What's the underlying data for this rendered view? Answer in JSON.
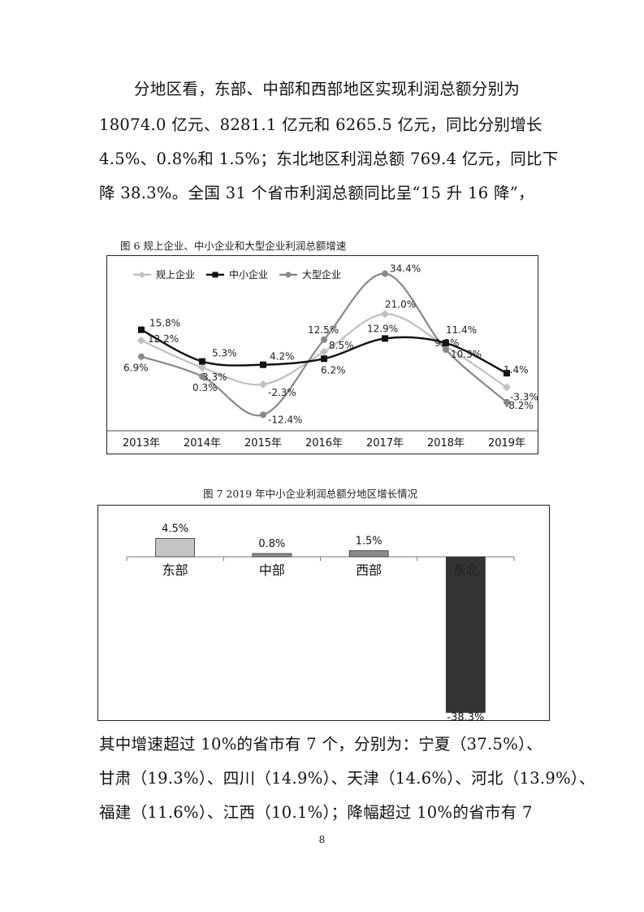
{
  "paragraph_top": {
    "lines": [
      "分地区看，东部、中部和西部地区实现利润总额分别为",
      "18074.0 亿元、8281.1 亿元和 6265.5 亿元，同比分别增长",
      "4.5%、0.8%和 1.5%；东北地区利润总额 769.4 亿元，同比下",
      "降 38.3%。全国 31 个省市利润总额同比呈“15 升 16 降”，"
    ]
  },
  "figure6": {
    "title": "图 6   规上企业、中小企业和大型企业利润总额增速"
  },
  "figure7": {
    "title": "图 7    2019 年中小企业利润总额分地区增长情况"
  },
  "chart_data": [
    {
      "type": "line",
      "title": "图 6 规上企业、中小企业和大型企业利润总额增速",
      "categories": [
        "2013年",
        "2014年",
        "2015年",
        "2016年",
        "2017年",
        "2018年",
        "2019年"
      ],
      "ylim": [
        -15,
        37
      ],
      "legend_position": "top-left",
      "series": [
        {
          "name": "规上企业",
          "color": "#c0c0c0",
          "marker": "diamond",
          "values": [
            12.2,
            3.3,
            -2.3,
            8.5,
            21.0,
            10.3,
            -3.3
          ],
          "labels": [
            "12.2%",
            "3.3%",
            "-2.3%",
            "8.5%",
            "21.0%",
            "10.3%",
            "-3.3%"
          ]
        },
        {
          "name": "中小企业",
          "color": "#111111",
          "marker": "square",
          "values": [
            15.8,
            5.3,
            4.2,
            6.2,
            12.9,
            11.4,
            1.4
          ],
          "labels": [
            "15.8%",
            "5.3%",
            "4.2%",
            "6.2%",
            "12.9%",
            "11.4%",
            "1.4%"
          ]
        },
        {
          "name": "大型企业",
          "color": "#888888",
          "marker": "circle",
          "values": [
            6.9,
            0.3,
            -12.4,
            12.5,
            34.4,
            9.2,
            -8.2
          ],
          "labels": [
            "6.9%",
            "0.3%",
            "-12.4%",
            "12.5%",
            "34.4%",
            "9.2%",
            "-8.2%"
          ]
        }
      ]
    },
    {
      "type": "bar",
      "title": "图 7 2019 年中小企业利润总额分地区增长情况",
      "categories": [
        "东部",
        "中部",
        "西部",
        "东北"
      ],
      "values": [
        4.5,
        0.8,
        1.5,
        -38.3
      ],
      "labels": [
        "4.5%",
        "0.8%",
        "1.5%",
        "-38.3%"
      ],
      "colors": [
        "#c4c4c4",
        "#8e8e8e",
        "#8a8a8a",
        "#333333"
      ],
      "ylim": [
        -40,
        8
      ]
    }
  ],
  "paragraph_bottom": {
    "lines": [
      "其中增速超过 10%的省市有 7 个，分别为：宁夏（37.5%）、",
      "甘肃（19.3%）、四川（14.9%）、天津（14.6%）、河北（13.9%）、",
      "福建（11.6%）、江西（10.1%）；降幅超过 10%的省市有 7"
    ]
  },
  "page_number": "8"
}
